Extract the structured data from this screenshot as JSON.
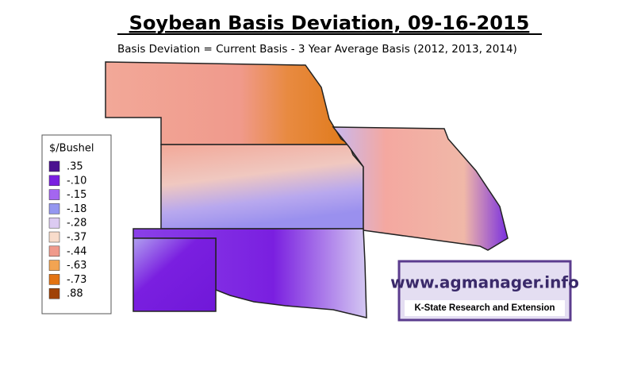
{
  "title": "Soybean Basis Deviation, 09-16-2015",
  "subtitle": "Basis Deviation = Current Basis - 3 Year Average Basis (2012, 2013, 2014)",
  "legend": {
    "title": "$/Bushel",
    "items": [
      {
        "label": ".35",
        "color": "#4b1190"
      },
      {
        "label": "-.10",
        "color": "#7a1fe0"
      },
      {
        "label": "-.15",
        "color": "#a466f0"
      },
      {
        "label": "-.18",
        "color": "#9496f0"
      },
      {
        "label": "-.28",
        "color": "#dccbf2"
      },
      {
        "label": "-.37",
        "color": "#f8dccb"
      },
      {
        "label": "-.44",
        "color": "#f09a8c"
      },
      {
        "label": "-.63",
        "color": "#f2a452"
      },
      {
        "label": "-.73",
        "color": "#e37312"
      },
      {
        "label": ".88",
        "color": "#a04206"
      }
    ]
  },
  "logo": {
    "url": "www.agmanager.info",
    "org": "K-State Research and Extension"
  }
}
